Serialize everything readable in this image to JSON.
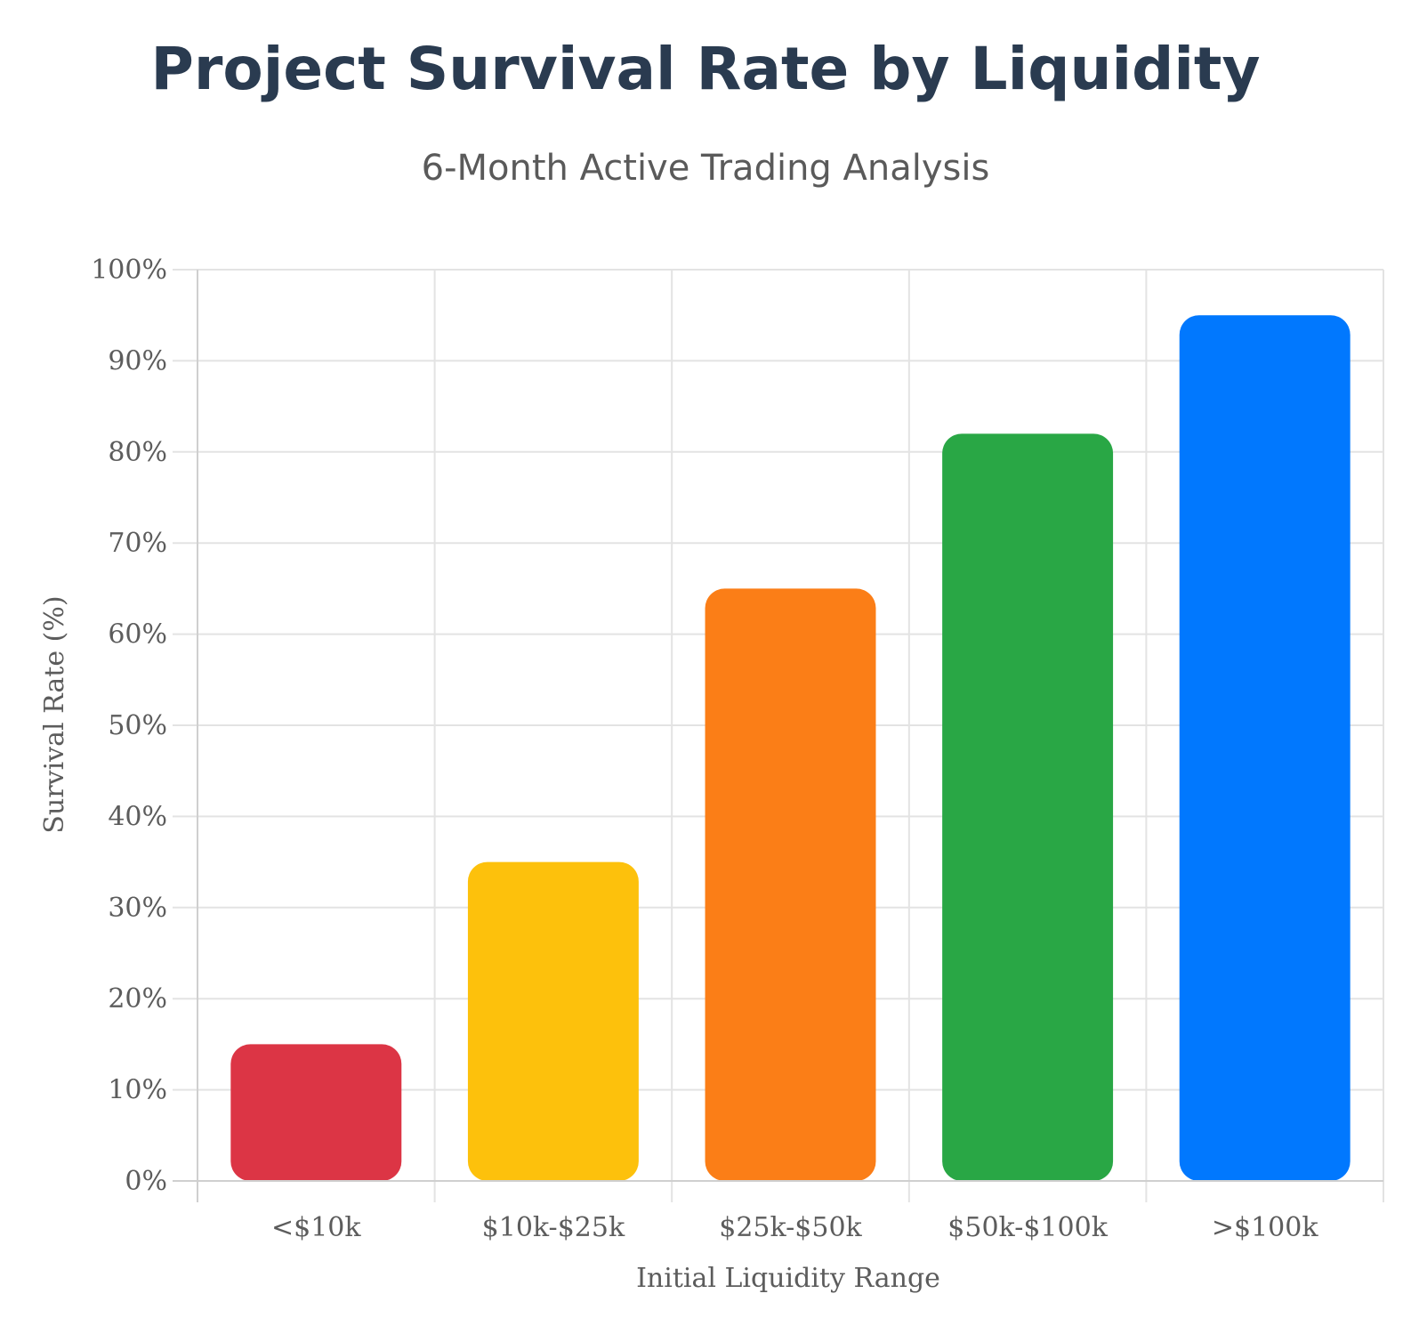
{
  "chart_data": {
    "type": "bar",
    "title": "Project Survival Rate by Liquidity",
    "subtitle": "6-Month Active Trading Analysis",
    "xlabel": "Initial Liquidity Range",
    "ylabel": "Survival Rate (%)",
    "categories": [
      "<$10k",
      "$10k-$25k",
      "$25k-$50k",
      "$50k-$100k",
      ">$100k"
    ],
    "values": [
      15,
      35,
      65,
      82,
      95
    ],
    "colors": [
      "#dc3545",
      "#fdc10c",
      "#fb7e17",
      "#29a745",
      "#0178fe"
    ],
    "ylim": [
      0,
      100
    ],
    "yticks": [
      0,
      10,
      20,
      30,
      40,
      50,
      60,
      70,
      80,
      90,
      100
    ],
    "ytick_labels": [
      "0%",
      "10%",
      "20%",
      "30%",
      "40%",
      "50%",
      "60%",
      "70%",
      "80%",
      "90%",
      "100%"
    ],
    "grid": true,
    "legend": "none"
  }
}
